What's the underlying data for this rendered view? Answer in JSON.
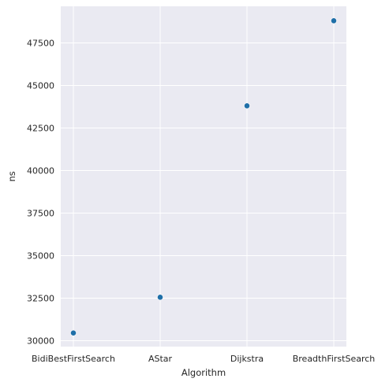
{
  "chart_data": {
    "type": "scatter",
    "title": "",
    "xlabel": "Algorithm",
    "ylabel": "ns",
    "categories": [
      "BidiBestFirstSearch",
      "AStar",
      "Dijkstra",
      "BreadthFirstSearch"
    ],
    "values": [
      30450,
      32550,
      43800,
      48800
    ],
    "yticks": [
      30000,
      32500,
      35000,
      37500,
      40000,
      42500,
      45000,
      47500
    ],
    "ytick_labels": [
      "30000",
      "32500",
      "35000",
      "37500",
      "40000",
      "42500",
      "45000",
      "47500"
    ],
    "ylim": [
      29650,
      49650
    ],
    "grid": true,
    "legend": "none",
    "colors": {
      "background": "#eaeaf2",
      "grid": "#ffffff",
      "marker": "#1f6fa8"
    }
  }
}
